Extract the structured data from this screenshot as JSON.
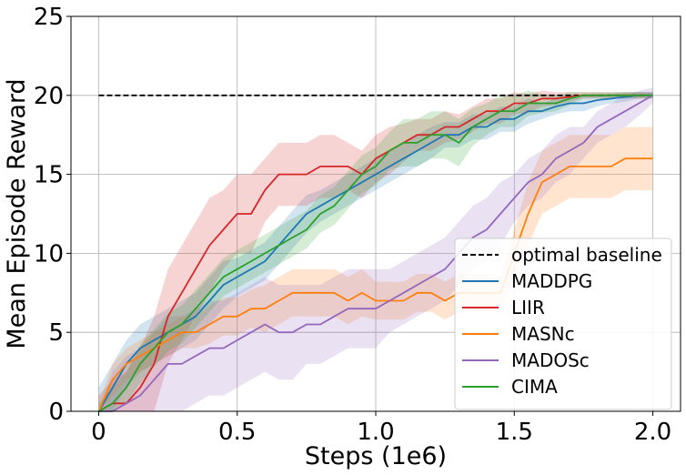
{
  "chart_data": {
    "type": "line",
    "title": "",
    "xlabel": "Steps (1e6)",
    "ylabel": "Mean Episode Reward",
    "xlim": [
      -0.1,
      2.1
    ],
    "ylim": [
      0,
      25
    ],
    "xticks": [
      0,
      0.5,
      1,
      1.5,
      2
    ],
    "xtick_labels": [
      "0",
      "0.5",
      "1.0",
      "1.5",
      "2.0"
    ],
    "yticks": [
      0,
      5,
      10,
      15,
      20,
      25
    ],
    "ytick_labels": [
      "0",
      "5",
      "10",
      "15",
      "20",
      "25"
    ],
    "grid": true,
    "legend_position": "lower-right",
    "baseline": {
      "name": "optimal baseline",
      "y": 20,
      "x_range": [
        0,
        2
      ],
      "style": "dashed",
      "color": "#000000"
    },
    "x": [
      0,
      0.05,
      0.1,
      0.15,
      0.2,
      0.25,
      0.3,
      0.35,
      0.4,
      0.45,
      0.5,
      0.55,
      0.6,
      0.65,
      0.7,
      0.75,
      0.8,
      0.85,
      0.9,
      0.95,
      1.0,
      1.05,
      1.1,
      1.15,
      1.2,
      1.25,
      1.3,
      1.35,
      1.4,
      1.45,
      1.5,
      1.55,
      1.6,
      1.65,
      1.7,
      1.75,
      1.8,
      1.85,
      1.9,
      1.95,
      2.0
    ],
    "series": [
      {
        "name": "MADDPG",
        "color": "#1f77b4",
        "values": [
          0,
          1.5,
          3.0,
          4.0,
          4.5,
          5.0,
          5.5,
          6.0,
          7.0,
          8.0,
          8.5,
          9.0,
          9.5,
          10.5,
          11.5,
          12.5,
          13.0,
          13.5,
          14.0,
          14.5,
          15.0,
          15.5,
          16.0,
          16.5,
          17.0,
          17.5,
          17.5,
          18.0,
          18.0,
          18.5,
          18.5,
          19.0,
          19.0,
          19.3,
          19.5,
          19.5,
          19.7,
          19.8,
          19.9,
          20.0,
          20.0
        ],
        "band": [
          1.5,
          1.5,
          1.5,
          1.5,
          1.5,
          1.5,
          1.5,
          1.5,
          1.5,
          1.5,
          1.2,
          1.2,
          1.2,
          1.2,
          1.2,
          1.2,
          1.0,
          1.0,
          1.0,
          1.0,
          1.0,
          1.0,
          1.0,
          1.0,
          1.0,
          0.8,
          0.8,
          0.8,
          0.8,
          0.8,
          0.8,
          0.8,
          0.5,
          0.5,
          0.5,
          0.5,
          0.4,
          0.3,
          0.3,
          0.2,
          0.2
        ]
      },
      {
        "name": "LIIR",
        "color": "#d62728",
        "values": [
          0,
          0.5,
          0.5,
          1.5,
          3.0,
          6.0,
          7.5,
          9.0,
          10.5,
          11.5,
          12.5,
          12.5,
          14.0,
          15.0,
          15.0,
          15.0,
          15.5,
          15.5,
          15.5,
          15.0,
          16.0,
          16.5,
          17.0,
          17.5,
          17.5,
          18.0,
          18.0,
          18.5,
          19.0,
          19.0,
          19.5,
          19.5,
          19.8,
          19.8,
          19.9,
          20.0,
          20.0,
          20.0,
          20.0,
          20.0,
          20.0
        ],
        "band": [
          1.0,
          1.5,
          2.0,
          2.5,
          3.0,
          3.0,
          3.0,
          3.0,
          3.0,
          2.5,
          2.5,
          2.5,
          2.0,
          2.0,
          2.0,
          2.0,
          2.0,
          2.0,
          1.5,
          1.5,
          1.5,
          1.5,
          1.2,
          1.0,
          1.0,
          1.0,
          0.8,
          0.8,
          0.8,
          0.8,
          0.7,
          0.6,
          0.5,
          0.4,
          0.3,
          0.2,
          0.2,
          0.2,
          0.2,
          0.2,
          0.2
        ]
      },
      {
        "name": "MASNc",
        "color": "#ff7f0e",
        "values": [
          0,
          2.0,
          3.0,
          3.5,
          4.0,
          4.5,
          5.0,
          5.0,
          5.5,
          6.0,
          6.0,
          6.5,
          6.5,
          7.0,
          7.5,
          7.5,
          7.5,
          7.5,
          7.0,
          7.5,
          7.0,
          7.0,
          7.0,
          7.5,
          7.5,
          7.0,
          7.5,
          7.5,
          7.5,
          7.5,
          10.0,
          12.5,
          14.5,
          15.0,
          15.5,
          15.5,
          15.5,
          15.5,
          16.0,
          16.0,
          16.0
        ],
        "band": [
          0.5,
          1.0,
          1.0,
          1.0,
          1.0,
          1.0,
          1.0,
          1.0,
          1.2,
          1.2,
          1.2,
          1.2,
          1.5,
          1.5,
          1.5,
          1.5,
          1.5,
          1.5,
          1.5,
          1.5,
          1.2,
          1.2,
          1.2,
          1.2,
          1.2,
          1.2,
          1.2,
          1.2,
          1.2,
          1.2,
          1.5,
          2.0,
          2.0,
          2.0,
          2.0,
          2.0,
          2.0,
          2.0,
          2.0,
          2.0,
          2.0
        ]
      },
      {
        "name": "MADOSc",
        "color": "#9467bd",
        "values": [
          0,
          0,
          0.5,
          1.0,
          2.0,
          3.0,
          3.0,
          3.5,
          4.0,
          4.0,
          4.5,
          5.0,
          5.5,
          5.0,
          5.0,
          5.5,
          5.5,
          6.0,
          6.5,
          6.5,
          6.5,
          7.0,
          7.5,
          8.0,
          8.5,
          9.0,
          10.0,
          11.0,
          11.5,
          12.5,
          13.5,
          14.5,
          15.0,
          16.0,
          16.5,
          17.0,
          18.0,
          18.5,
          19.0,
          19.5,
          20.0
        ],
        "band": [
          0,
          2.5,
          3.0,
          3.0,
          3.0,
          3.0,
          3.0,
          3.0,
          3.0,
          3.0,
          3.0,
          3.0,
          3.0,
          3.0,
          3.0,
          2.5,
          2.5,
          2.5,
          2.5,
          2.5,
          2.5,
          2.0,
          2.0,
          2.0,
          2.0,
          2.0,
          2.0,
          2.0,
          2.0,
          2.0,
          1.5,
          1.5,
          1.5,
          1.5,
          1.5,
          1.0,
          1.0,
          1.0,
          1.0,
          0.8,
          0.5
        ]
      },
      {
        "name": "CIMA",
        "color": "#2ca02c",
        "values": [
          0,
          0.5,
          1.5,
          3.0,
          4.0,
          5.0,
          5.5,
          6.5,
          7.5,
          8.5,
          9.0,
          9.5,
          10.0,
          10.5,
          11.0,
          11.5,
          12.5,
          13.0,
          14.0,
          15.0,
          15.5,
          16.5,
          17.0,
          17.0,
          17.5,
          17.5,
          17.0,
          18.0,
          18.5,
          19.0,
          19.0,
          19.5,
          19.5,
          19.5,
          19.8,
          20.0,
          20.0,
          20.0,
          20.0,
          20.0,
          20.0
        ],
        "band": [
          0.5,
          1.0,
          1.0,
          1.2,
          1.2,
          1.2,
          1.2,
          1.2,
          1.2,
          1.2,
          1.2,
          1.2,
          1.2,
          1.2,
          1.2,
          1.2,
          1.2,
          1.2,
          1.2,
          1.2,
          1.2,
          1.2,
          1.5,
          1.5,
          1.5,
          1.5,
          1.5,
          1.2,
          1.0,
          1.0,
          1.0,
          0.8,
          0.6,
          0.5,
          0.4,
          0.2,
          0.2,
          0.2,
          0.2,
          0.2,
          0.2
        ]
      }
    ]
  }
}
